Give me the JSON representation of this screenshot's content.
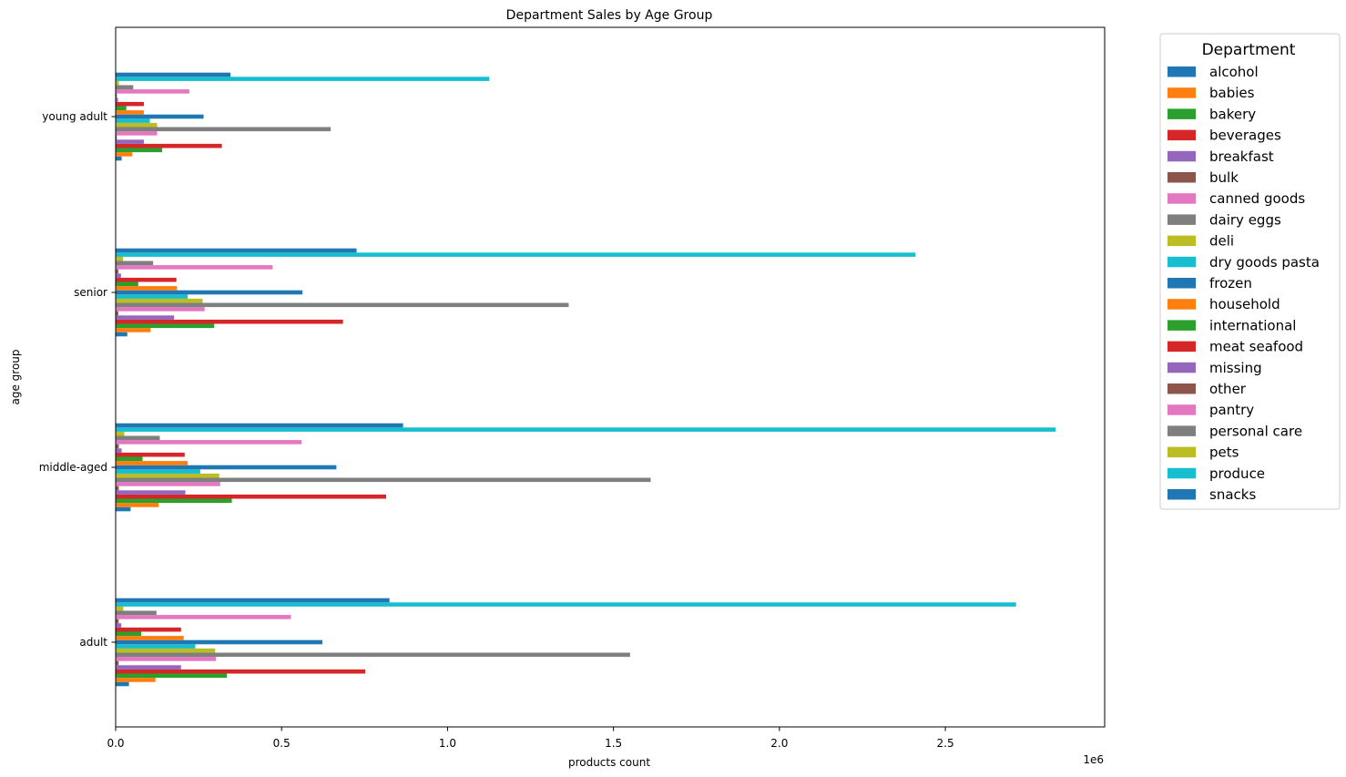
{
  "chart_data": {
    "type": "bar",
    "orientation": "horizontal",
    "title": "Department Sales by Age Group",
    "xlabel": "products count",
    "ylabel": "age group",
    "x_scale_label": "1e6",
    "xlim": [
      0,
      2980000
    ],
    "xticks": [
      {
        "value": 0,
        "label": "0.0"
      },
      {
        "value": 500000,
        "label": "0.5"
      },
      {
        "value": 1000000,
        "label": "1.0"
      },
      {
        "value": 1500000,
        "label": "1.5"
      },
      {
        "value": 2000000,
        "label": "2.0"
      },
      {
        "value": 2500000,
        "label": "2.5"
      }
    ],
    "categories": [
      "adult",
      "middle-aged",
      "senior",
      "young adult"
    ],
    "legend_title": "Department",
    "legend_position": "outside right",
    "series": [
      {
        "name": "alcohol",
        "color": "#1f77b4",
        "values": [
          40000,
          45000,
          35000,
          18000
        ]
      },
      {
        "name": "babies",
        "color": "#ff7f0e",
        "values": [
          120000,
          130000,
          105000,
          50000
        ]
      },
      {
        "name": "bakery",
        "color": "#2ca02c",
        "values": [
          335000,
          350000,
          297000,
          140000
        ]
      },
      {
        "name": "beverages",
        "color": "#d62728",
        "values": [
          752000,
          815000,
          685000,
          320000
        ]
      },
      {
        "name": "breakfast",
        "color": "#9467bd",
        "values": [
          197000,
          210000,
          176000,
          85000
        ]
      },
      {
        "name": "bulk",
        "color": "#8c564b",
        "values": [
          9000,
          9500,
          8000,
          3500
        ]
      },
      {
        "name": "canned goods",
        "color": "#e377c2",
        "values": [
          302000,
          315000,
          268000,
          125000
        ]
      },
      {
        "name": "dairy eggs",
        "color": "#7f7f7f",
        "values": [
          1550000,
          1612000,
          1365000,
          648000
        ]
      },
      {
        "name": "deli",
        "color": "#bcbd22",
        "values": [
          300000,
          312000,
          262000,
          125000
        ]
      },
      {
        "name": "dry goods pasta",
        "color": "#17becf",
        "values": [
          240000,
          255000,
          217000,
          103000
        ]
      },
      {
        "name": "frozen",
        "color": "#1f77b4",
        "values": [
          623000,
          665000,
          563000,
          265000
        ]
      },
      {
        "name": "household",
        "color": "#ff7f0e",
        "values": [
          205000,
          217000,
          185000,
          85000
        ]
      },
      {
        "name": "international",
        "color": "#2ca02c",
        "values": [
          77000,
          81000,
          68000,
          32000
        ]
      },
      {
        "name": "meat seafood",
        "color": "#d62728",
        "values": [
          197000,
          208000,
          183000,
          85000
        ]
      },
      {
        "name": "missing",
        "color": "#9467bd",
        "values": [
          17000,
          18000,
          16000,
          7000
        ]
      },
      {
        "name": "other",
        "color": "#8c564b",
        "values": [
          9000,
          9500,
          8000,
          3500
        ]
      },
      {
        "name": "pantry",
        "color": "#e377c2",
        "values": [
          528000,
          560000,
          473000,
          222000
        ]
      },
      {
        "name": "personal care",
        "color": "#7f7f7f",
        "values": [
          123000,
          133000,
          113000,
          53000
        ]
      },
      {
        "name": "pets",
        "color": "#bcbd22",
        "values": [
          23000,
          26000,
          22000,
          10000
        ]
      },
      {
        "name": "produce",
        "color": "#17becf",
        "values": [
          2713000,
          2832000,
          2410000,
          1126000
        ]
      },
      {
        "name": "snacks",
        "color": "#1f77b4",
        "values": [
          825000,
          866000,
          726000,
          346000
        ]
      }
    ]
  }
}
